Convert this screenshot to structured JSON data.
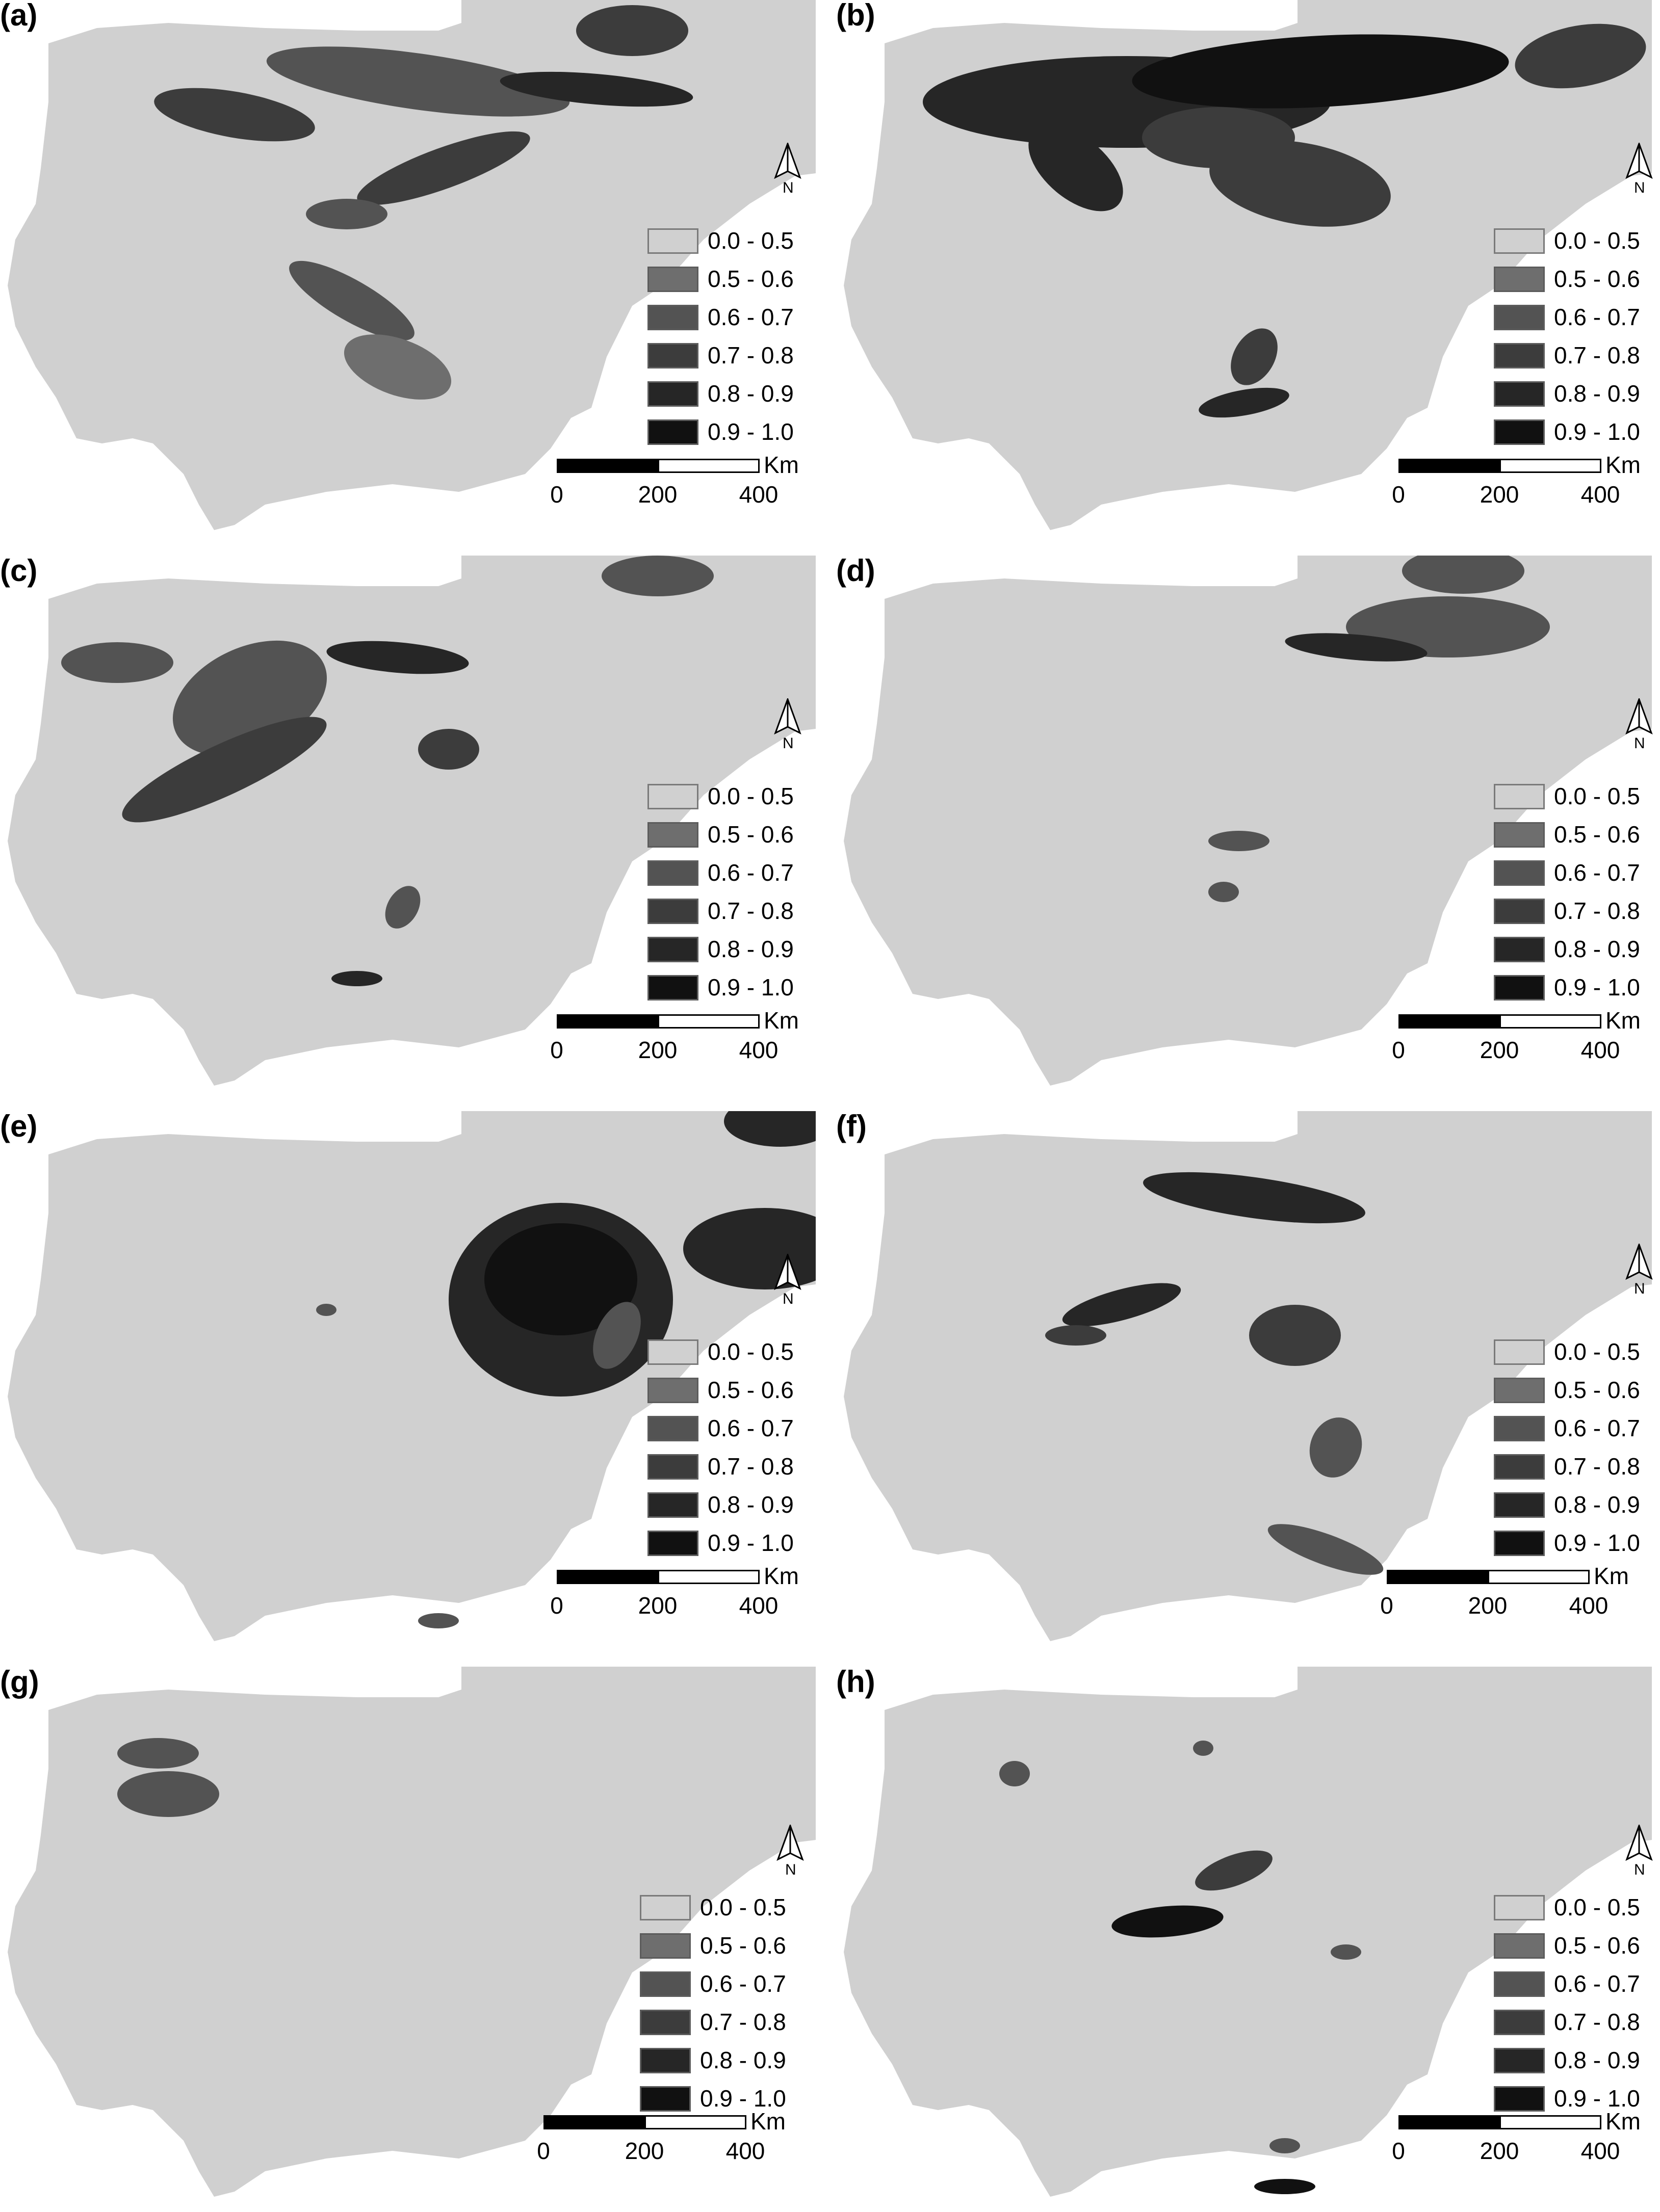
{
  "colors": {
    "land": "#d0d0d0",
    "classes": [
      "#d0d0d0",
      "#6e6e6e",
      "#535353",
      "#3c3c3c",
      "#262626",
      "#111111"
    ]
  },
  "legend": {
    "items": [
      "0.0 - 0.5",
      "0.5 - 0.6",
      "0.6 - 0.7",
      "0.7 - 0.8",
      "0.8 - 0.9",
      "0.9 - 1.0"
    ]
  },
  "scalebar": {
    "unit": "Km",
    "ticks": [
      "0",
      "200",
      "400"
    ]
  },
  "north_arrow": {
    "label": "N",
    "icon": "north-arrow-icon"
  },
  "panels": [
    {
      "label": "(a)"
    },
    {
      "label": "(b)"
    },
    {
      "label": "(c)"
    },
    {
      "label": "(d)"
    },
    {
      "label": "(e)"
    },
    {
      "label": "(f)"
    },
    {
      "label": "(g)"
    },
    {
      "label": "(h)"
    }
  ]
}
